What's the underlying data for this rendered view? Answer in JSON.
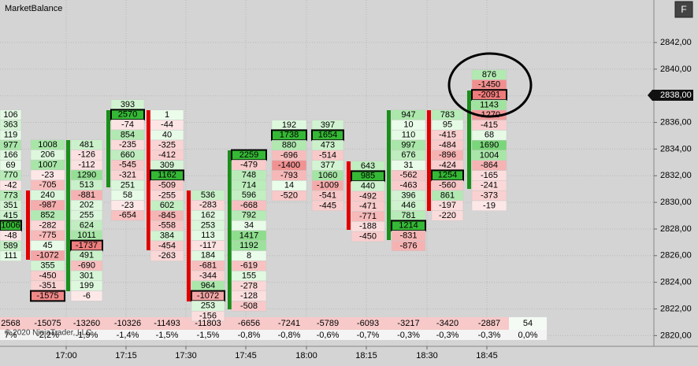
{
  "title": "MarketBalance",
  "button": "F",
  "current_price": "2838,00",
  "copyright": "© 2020 NinjaTrader, LLC",
  "price_labels": [
    "2842,00",
    "2840,00",
    "2838,00",
    "2836,00",
    "2834,00",
    "2832,00",
    "2830,00",
    "2828,00",
    "2826,00",
    "2824,00",
    "2822,00",
    "2820,00"
  ],
  "time_labels": [
    "17:00",
    "17:15",
    "17:30",
    "17:45",
    "18:00",
    "18:15",
    "18:30",
    "18:45"
  ],
  "columns": [
    {
      "cells": [
        106,
        363,
        119,
        977,
        166,
        69,
        770,
        -42,
        773,
        351,
        415,
        1006,
        -48,
        589,
        111
      ],
      "delta": 2568,
      "percent": "7%"
    },
    {
      "cells": [
        1008,
        206,
        1007,
        -23,
        -705,
        240,
        -987,
        852,
        -282,
        -775,
        45,
        -1072,
        355,
        -450,
        -351,
        -1575
      ],
      "bar_color": "#e00000",
      "delta": -15075,
      "percent": "-2,2%"
    },
    {
      "cells": [
        481,
        -126,
        -112,
        1290,
        513,
        -881,
        202,
        255,
        624,
        1011,
        -1737,
        491,
        -690,
        301,
        199,
        -6
      ],
      "bar_color": "#1a8f1a",
      "delta": -13260,
      "percent": "-1,9%"
    },
    {
      "cells": [
        393,
        2570,
        -74,
        854,
        -235,
        660,
        -545,
        -321,
        251,
        58,
        -23,
        -654
      ],
      "bar_color": "#1a8f1a",
      "delta": -10326,
      "percent": "-1,4%"
    },
    {
      "cells": [
        1,
        -44,
        40,
        -325,
        -412,
        309,
        1162,
        -509,
        -255,
        602,
        -845,
        -558,
        384,
        -454,
        -263
      ],
      "bar_color": "#e00000",
      "delta": -11493,
      "percent": "-1,5%"
    },
    {
      "cells": [
        536,
        -283,
        162,
        253,
        113,
        -117,
        184,
        -681,
        -344,
        964,
        -1072,
        253,
        -156
      ],
      "bar_color": "#e00000",
      "delta": -11803,
      "percent": "-1,5%"
    },
    {
      "cells": [
        2259,
        -479,
        748,
        714,
        596,
        -668,
        792,
        34,
        1417,
        1192,
        8,
        -619,
        155,
        -278,
        -128,
        -508
      ],
      "bar_color": "#1a8f1a",
      "delta": -6656,
      "percent": "-0,8%"
    },
    {
      "cells": [
        192,
        1738,
        880,
        -696,
        -1400,
        -793,
        14,
        -520
      ],
      "delta": -7241,
      "percent": "-0,8%"
    },
    {
      "cells": [
        397,
        1654,
        473,
        -514,
        377,
        1060,
        -1009,
        -541,
        -445
      ],
      "delta": -5789,
      "percent": "-0,6%"
    },
    {
      "cells": [
        643,
        985,
        440,
        -492,
        -471,
        -771,
        -188,
        -450
      ],
      "bar_color": "#e00000",
      "delta": -6093,
      "percent": "-0,7%"
    },
    {
      "cells": [
        947,
        10,
        110,
        997,
        676,
        31,
        -562,
        -463,
        396,
        446,
        781,
        1214,
        -831,
        -876
      ],
      "bar_color": "#1a8f1a",
      "delta": -3217,
      "percent": "-0,3%"
    },
    {
      "cells": [
        783,
        95,
        -415,
        -484,
        -896,
        -424,
        1254,
        -560,
        861,
        -197,
        -220
      ],
      "bar_color": "#e00000",
      "delta": -3420,
      "percent": "-0,3%"
    },
    {
      "cells": [
        876,
        -1450,
        -2091,
        1143,
        -1270,
        -415,
        68,
        1690,
        1004,
        -864,
        -165,
        -241,
        -373,
        -19
      ],
      "bar_color": "#1a8f1a",
      "delta": -2887,
      "percent": "-0,3%"
    },
    {
      "cells": [],
      "delta": 54,
      "percent": "0,0%"
    }
  ]
}
